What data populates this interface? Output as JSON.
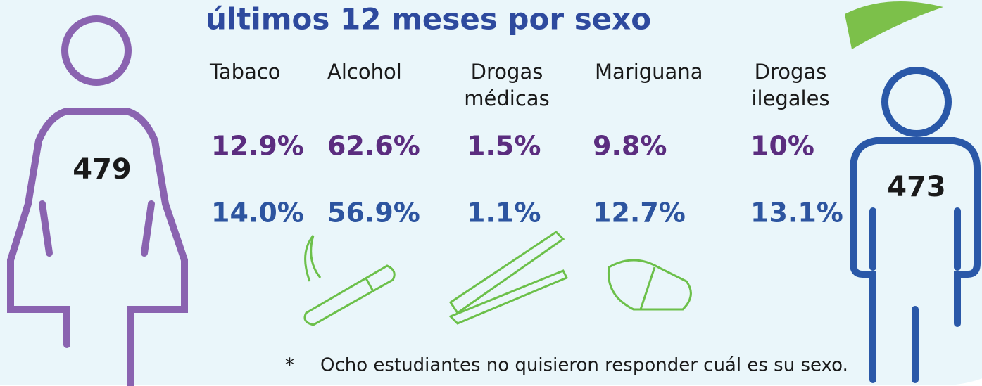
{
  "title": "últimos 12 meses por sexo",
  "columns": [
    {
      "label": [
        "Tabaco"
      ],
      "female": "12.9%",
      "male": "14.0%"
    },
    {
      "label": [
        "Alcohol"
      ],
      "female": "62.6%",
      "male": "56.9%"
    },
    {
      "label": [
        "Drogas",
        "médicas"
      ],
      "female": "1.5%",
      "male": "1.1%"
    },
    {
      "label": [
        "Mariguana"
      ],
      "female": "9.8%",
      "male": "12.7%"
    },
    {
      "label": [
        "Drogas",
        "ilegales"
      ],
      "female": "10%",
      "male": "13.1%"
    }
  ],
  "female_count": "479",
  "male_count": "473",
  "footnote": {
    "mark": "*",
    "text": "Ocho estudiantes no quisieron responder cuál es su sexo."
  }
}
